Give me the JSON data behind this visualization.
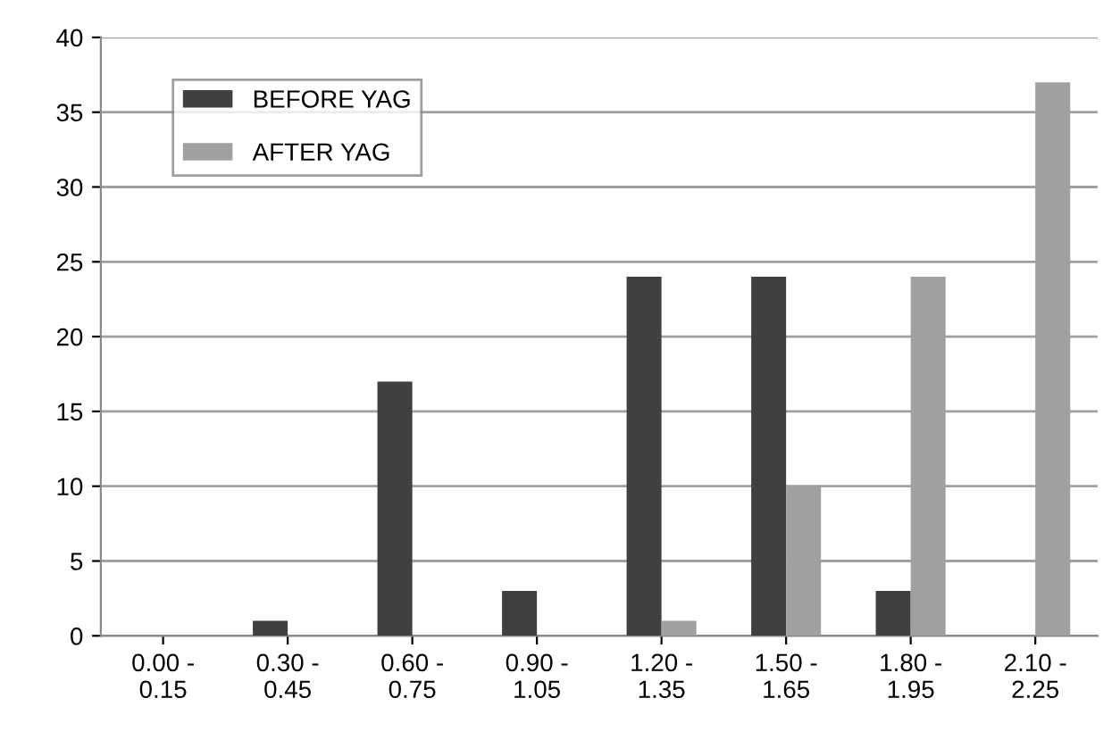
{
  "chart_data": {
    "type": "bar",
    "categories": [
      "0.00 -\n0.15",
      "0.30 -\n0.45",
      "0.60 -\n0.75",
      "0.90 -\n1.05",
      "1.20 -\n1.35",
      "1.50 -\n1.65",
      "1.80 -\n1.95",
      "2.10 -\n2.25"
    ],
    "series": [
      {
        "name": "BEFORE YAG",
        "color": "#404040",
        "values": [
          0,
          1,
          17,
          3,
          24,
          24,
          3,
          0
        ]
      },
      {
        "name": "AFTER YAG",
        "color": "#a0a0a0",
        "values": [
          0,
          0,
          0,
          0,
          1,
          10,
          24,
          37
        ]
      }
    ],
    "ylim": [
      0,
      40
    ],
    "yticks": [
      0,
      5,
      10,
      15,
      20,
      25,
      30,
      35,
      40
    ],
    "grid": "y",
    "legend": "top left"
  }
}
